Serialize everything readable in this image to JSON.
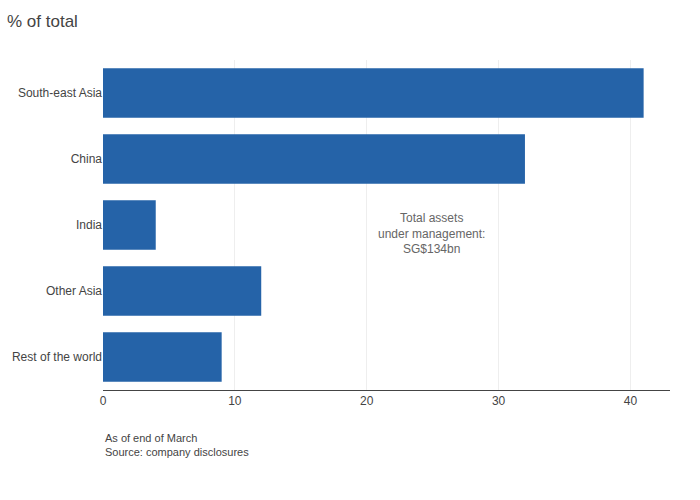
{
  "chart_data": {
    "type": "bar",
    "orientation": "horizontal",
    "title": "% of total",
    "categories": [
      "Rest of the world",
      "Other Asia",
      "India",
      "China",
      "South-east Asia"
    ],
    "values": [
      9,
      12,
      4,
      32,
      41
    ],
    "color": "#2563a8",
    "xlim": [
      0,
      43
    ],
    "xticks": [
      0,
      10,
      20,
      30,
      40
    ],
    "grid": true,
    "annotations": [
      "Total assets\nunder management:\nSG$134bn",
      "As of end of March",
      "Source: company disclosures"
    ]
  }
}
